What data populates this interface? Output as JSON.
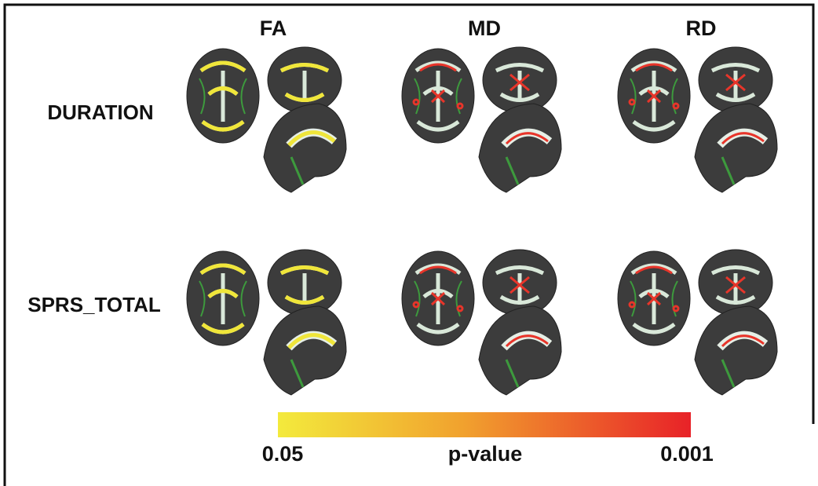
{
  "columns": [
    "FA",
    "MD",
    "RD"
  ],
  "rows": [
    "DURATION",
    "SPRS_TOTAL"
  ],
  "colorbar": {
    "low_label": "0.05",
    "title": "p-value",
    "high_label": "0.001"
  }
}
